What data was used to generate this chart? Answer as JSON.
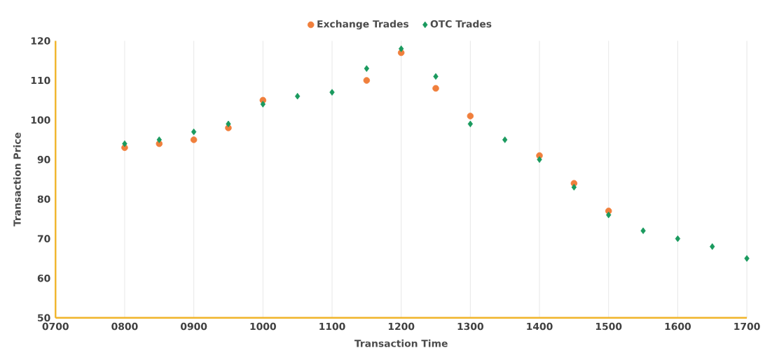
{
  "chart_data": {
    "type": "scatter",
    "xlabel": "Transaction Time",
    "ylabel": "Transaction Price",
    "x": [
      800,
      850,
      900,
      950,
      1000,
      1050,
      1100,
      1150,
      1200,
      1250,
      1300,
      1350,
      1400,
      1450,
      1500,
      1550,
      1600,
      1650,
      1700
    ],
    "series": [
      {
        "name": "Exchange Trades",
        "color": "#f07f3c",
        "marker": "circle",
        "values": [
          93,
          94,
          95,
          98,
          105,
          null,
          null,
          110,
          117,
          108,
          101,
          null,
          91,
          84,
          77,
          null,
          null,
          null,
          null
        ]
      },
      {
        "name": "OTC Trades",
        "color": "#1a9a5e",
        "marker": "diamond",
        "values": [
          94,
          95,
          97,
          99,
          104,
          106,
          107,
          113,
          118,
          111,
          99,
          95,
          90,
          83,
          76,
          72,
          70,
          68,
          65
        ]
      }
    ],
    "xlim": [
      700,
      1700
    ],
    "ylim": [
      50,
      120
    ],
    "xticks": [
      {
        "value": 700,
        "label": "0700"
      },
      {
        "value": 800,
        "label": "0800"
      },
      {
        "value": 900,
        "label": "0900"
      },
      1000,
      1100,
      1200,
      1300,
      1400,
      1500,
      1600,
      1700
    ],
    "yticks": [
      50,
      60,
      70,
      80,
      90,
      100,
      110,
      120
    ],
    "grid": "x",
    "legend": "top"
  }
}
